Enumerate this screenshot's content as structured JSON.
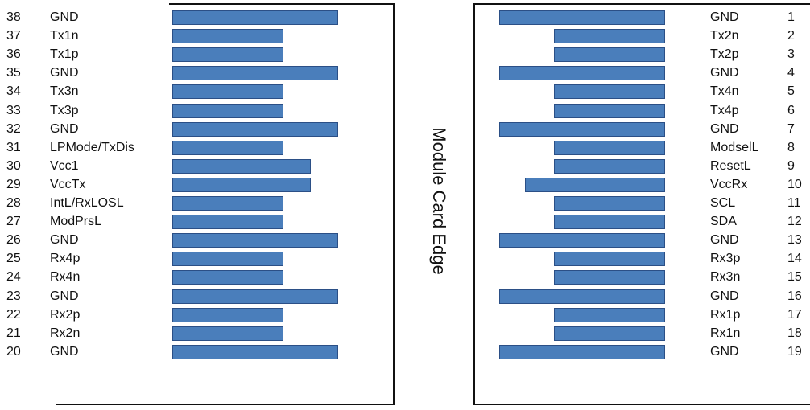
{
  "title": "Module Card Edge",
  "colors": {
    "pad_fill": "#4a7ebb",
    "pad_border": "#2b4f86",
    "frame": "#111111"
  },
  "top_side": {
    "pins": [
      {
        "number": "38",
        "label": "GND",
        "pad": "long"
      },
      {
        "number": "37",
        "label": "Tx1n",
        "pad": "short"
      },
      {
        "number": "36",
        "label": "Tx1p",
        "pad": "short"
      },
      {
        "number": "35",
        "label": "GND",
        "pad": "long"
      },
      {
        "number": "34",
        "label": "Tx3n",
        "pad": "short"
      },
      {
        "number": "33",
        "label": "Tx3p",
        "pad": "short"
      },
      {
        "number": "32",
        "label": "GND",
        "pad": "long"
      },
      {
        "number": "31",
        "label": "LPMode/TxDis",
        "pad": "short"
      },
      {
        "number": "30",
        "label": "Vcc1",
        "pad": "medium"
      },
      {
        "number": "29",
        "label": "VccTx",
        "pad": "medium"
      },
      {
        "number": "28",
        "label": "IntL/RxLOSL",
        "pad": "short"
      },
      {
        "number": "27",
        "label": "ModPrsL",
        "pad": "short"
      },
      {
        "number": "26",
        "label": "GND",
        "pad": "long"
      },
      {
        "number": "25",
        "label": "Rx4p",
        "pad": "short"
      },
      {
        "number": "24",
        "label": "Rx4n",
        "pad": "short"
      },
      {
        "number": "23",
        "label": "GND",
        "pad": "long"
      },
      {
        "number": "22",
        "label": "Rx2p",
        "pad": "short"
      },
      {
        "number": "21",
        "label": "Rx2n",
        "pad": "short"
      },
      {
        "number": "20",
        "label": "GND",
        "pad": "long"
      }
    ]
  },
  "bottom_side": {
    "pins": [
      {
        "number": "1",
        "label": "GND",
        "pad": "long"
      },
      {
        "number": "2",
        "label": "Tx2n",
        "pad": "short"
      },
      {
        "number": "3",
        "label": "Tx2p",
        "pad": "short"
      },
      {
        "number": "4",
        "label": "GND",
        "pad": "long"
      },
      {
        "number": "5",
        "label": "Tx4n",
        "pad": "short"
      },
      {
        "number": "6",
        "label": "Tx4p",
        "pad": "short"
      },
      {
        "number": "7",
        "label": "GND",
        "pad": "long"
      },
      {
        "number": "8",
        "label": "ModselL",
        "pad": "short"
      },
      {
        "number": "9",
        "label": "ResetL",
        "pad": "short"
      },
      {
        "number": "10",
        "label": "VccRx",
        "pad": "medium"
      },
      {
        "number": "11",
        "label": "SCL",
        "pad": "short"
      },
      {
        "number": "12",
        "label": "SDA",
        "pad": "short"
      },
      {
        "number": "13",
        "label": "GND",
        "pad": "long"
      },
      {
        "number": "14",
        "label": "Rx3p",
        "pad": "short"
      },
      {
        "number": "15",
        "label": "Rx3n",
        "pad": "short"
      },
      {
        "number": "16",
        "label": "GND",
        "pad": "long"
      },
      {
        "number": "17",
        "label": "Rx1p",
        "pad": "short"
      },
      {
        "number": "18",
        "label": "Rx1n",
        "pad": "short"
      },
      {
        "number": "19",
        "label": "GND",
        "pad": "long"
      }
    ]
  }
}
